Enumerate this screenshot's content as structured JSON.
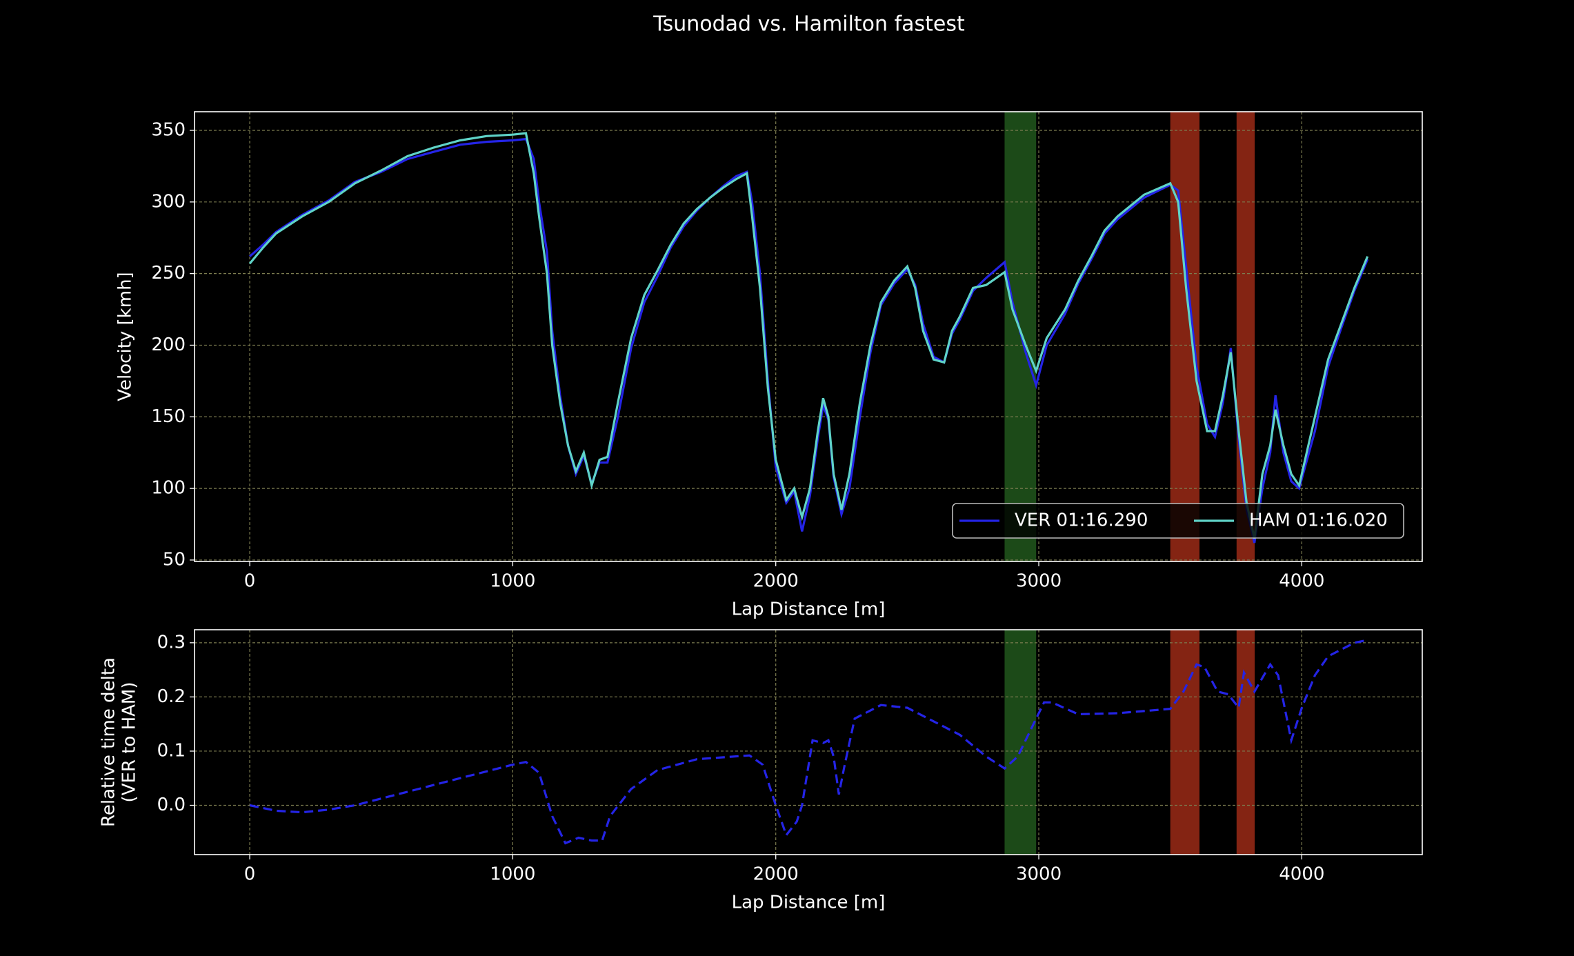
{
  "title": "Tsunodad vs. Hamilton fastest",
  "chart_data": [
    {
      "type": "line",
      "xlabel": "Lap Distance [m]",
      "ylabel": [
        "Velocity [kmh]"
      ],
      "x": [
        0,
        50,
        100,
        200,
        300,
        400,
        500,
        600,
        700,
        800,
        900,
        1000,
        1050,
        1080,
        1100,
        1130,
        1150,
        1180,
        1210,
        1240,
        1270,
        1300,
        1330,
        1360,
        1400,
        1450,
        1500,
        1550,
        1600,
        1650,
        1700,
        1750,
        1800,
        1850,
        1890,
        1910,
        1940,
        1970,
        2000,
        2040,
        2070,
        2100,
        2130,
        2160,
        2180,
        2200,
        2220,
        2250,
        2280,
        2320,
        2360,
        2400,
        2450,
        2500,
        2530,
        2560,
        2600,
        2640,
        2670,
        2700,
        2750,
        2800,
        2870,
        2900,
        2950,
        2990,
        3030,
        3100,
        3150,
        3200,
        3250,
        3300,
        3400,
        3500,
        3530,
        3560,
        3600,
        3640,
        3670,
        3700,
        3730,
        3760,
        3790,
        3820,
        3850,
        3880,
        3900,
        3930,
        3960,
        3990,
        4050,
        4100,
        4150,
        4200,
        4250
      ],
      "series": [
        {
          "name": "VER 01:16.290",
          "color": "#2424e6",
          "values": [
            262,
            270,
            279,
            291,
            301,
            314,
            321,
            330,
            335,
            340,
            342,
            343,
            344,
            330,
            300,
            265,
            210,
            165,
            130,
            110,
            123,
            103,
            118,
            118,
            150,
            198,
            230,
            248,
            268,
            283,
            294,
            303,
            311,
            318,
            321,
            300,
            250,
            175,
            115,
            90,
            98,
            70,
            95,
            135,
            158,
            148,
            108,
            82,
            100,
            150,
            195,
            228,
            243,
            253,
            242,
            215,
            192,
            188,
            208,
            218,
            238,
            247,
            258,
            230,
            195,
            172,
            200,
            222,
            243,
            260,
            278,
            288,
            303,
            312,
            308,
            255,
            185,
            145,
            136,
            160,
            198,
            135,
            85,
            62,
            100,
            125,
            165,
            125,
            105,
            100,
            140,
            185,
            212,
            238,
            260
          ]
        },
        {
          "name": "HAM 01:16.020",
          "color": "#5fd3c8",
          "values": [
            257,
            268,
            278,
            290,
            300,
            313,
            322,
            332,
            338,
            343,
            346,
            347,
            348,
            320,
            290,
            250,
            200,
            160,
            130,
            112,
            125,
            102,
            120,
            122,
            160,
            205,
            235,
            252,
            270,
            285,
            295,
            303,
            310,
            316,
            320,
            290,
            240,
            170,
            120,
            92,
            100,
            80,
            100,
            140,
            163,
            150,
            110,
            85,
            110,
            160,
            200,
            230,
            245,
            255,
            240,
            210,
            190,
            188,
            210,
            220,
            240,
            242,
            251,
            225,
            200,
            182,
            205,
            225,
            245,
            262,
            280,
            290,
            305,
            313,
            300,
            240,
            175,
            140,
            140,
            165,
            195,
            140,
            90,
            65,
            110,
            130,
            155,
            130,
            110,
            102,
            150,
            190,
            215,
            240,
            262
          ]
        }
      ],
      "spans": [
        {
          "xmin": 2870,
          "xmax": 2990,
          "color": "#1c4a18"
        },
        {
          "xmin": 3500,
          "xmax": 3611,
          "color": "#842413"
        },
        {
          "xmin": 3752,
          "xmax": 3821,
          "color": "#842413"
        }
      ],
      "xlim": [
        -210,
        4458
      ],
      "xticks": [
        0,
        1000,
        2000,
        3000,
        4000
      ],
      "ylim": [
        49,
        363
      ],
      "yticks": [
        50,
        100,
        150,
        200,
        250,
        300,
        350
      ],
      "grid": true,
      "legend": "lower right"
    },
    {
      "type": "line",
      "xlabel": "Lap Distance [m]",
      "ylabel": [
        "Relative time delta",
        "(VER to HAM)"
      ],
      "x": [
        0,
        100,
        200,
        300,
        400,
        600,
        800,
        1000,
        1050,
        1100,
        1150,
        1200,
        1250,
        1300,
        1340,
        1370,
        1450,
        1550,
        1700,
        1900,
        1950,
        2000,
        2040,
        2080,
        2100,
        2140,
        2180,
        2200,
        2220,
        2240,
        2260,
        2300,
        2400,
        2500,
        2600,
        2700,
        2800,
        2870,
        2920,
        2970,
        3020,
        3050,
        3150,
        3300,
        3500,
        3550,
        3600,
        3630,
        3680,
        3720,
        3760,
        3780,
        3820,
        3880,
        3910,
        3960,
        4000,
        4050,
        4100,
        4200,
        4250
      ],
      "series": [
        {
          "name": "delta",
          "color": "#2424e6",
          "dashed": true,
          "values": [
            0.0,
            -0.01,
            -0.013,
            -0.008,
            0.0,
            0.025,
            0.05,
            0.075,
            0.08,
            0.06,
            -0.02,
            -0.07,
            -0.06,
            -0.065,
            -0.065,
            -0.02,
            0.03,
            0.065,
            0.085,
            0.092,
            0.075,
            0.0,
            -0.055,
            -0.03,
            0.0,
            0.12,
            0.115,
            0.12,
            0.09,
            0.02,
            0.07,
            0.16,
            0.185,
            0.18,
            0.155,
            0.13,
            0.09,
            0.068,
            0.09,
            0.14,
            0.19,
            0.19,
            0.168,
            0.17,
            0.178,
            0.21,
            0.26,
            0.255,
            0.21,
            0.205,
            0.18,
            0.245,
            0.21,
            0.26,
            0.24,
            0.12,
            0.18,
            0.24,
            0.275,
            0.3,
            0.305
          ]
        }
      ],
      "spans": [
        {
          "xmin": 2870,
          "xmax": 2990,
          "color": "#1c4a18"
        },
        {
          "xmin": 3500,
          "xmax": 3611,
          "color": "#842413"
        },
        {
          "xmin": 3752,
          "xmax": 3821,
          "color": "#842413"
        }
      ],
      "xlim": [
        -210,
        4458
      ],
      "xticks": [
        0,
        1000,
        2000,
        3000,
        4000
      ],
      "ylim": [
        -0.091,
        0.324
      ],
      "yticks": [
        {
          "value": 0,
          "label": "0.0"
        },
        0.1,
        0.2,
        0.3
      ],
      "grid": true
    }
  ]
}
